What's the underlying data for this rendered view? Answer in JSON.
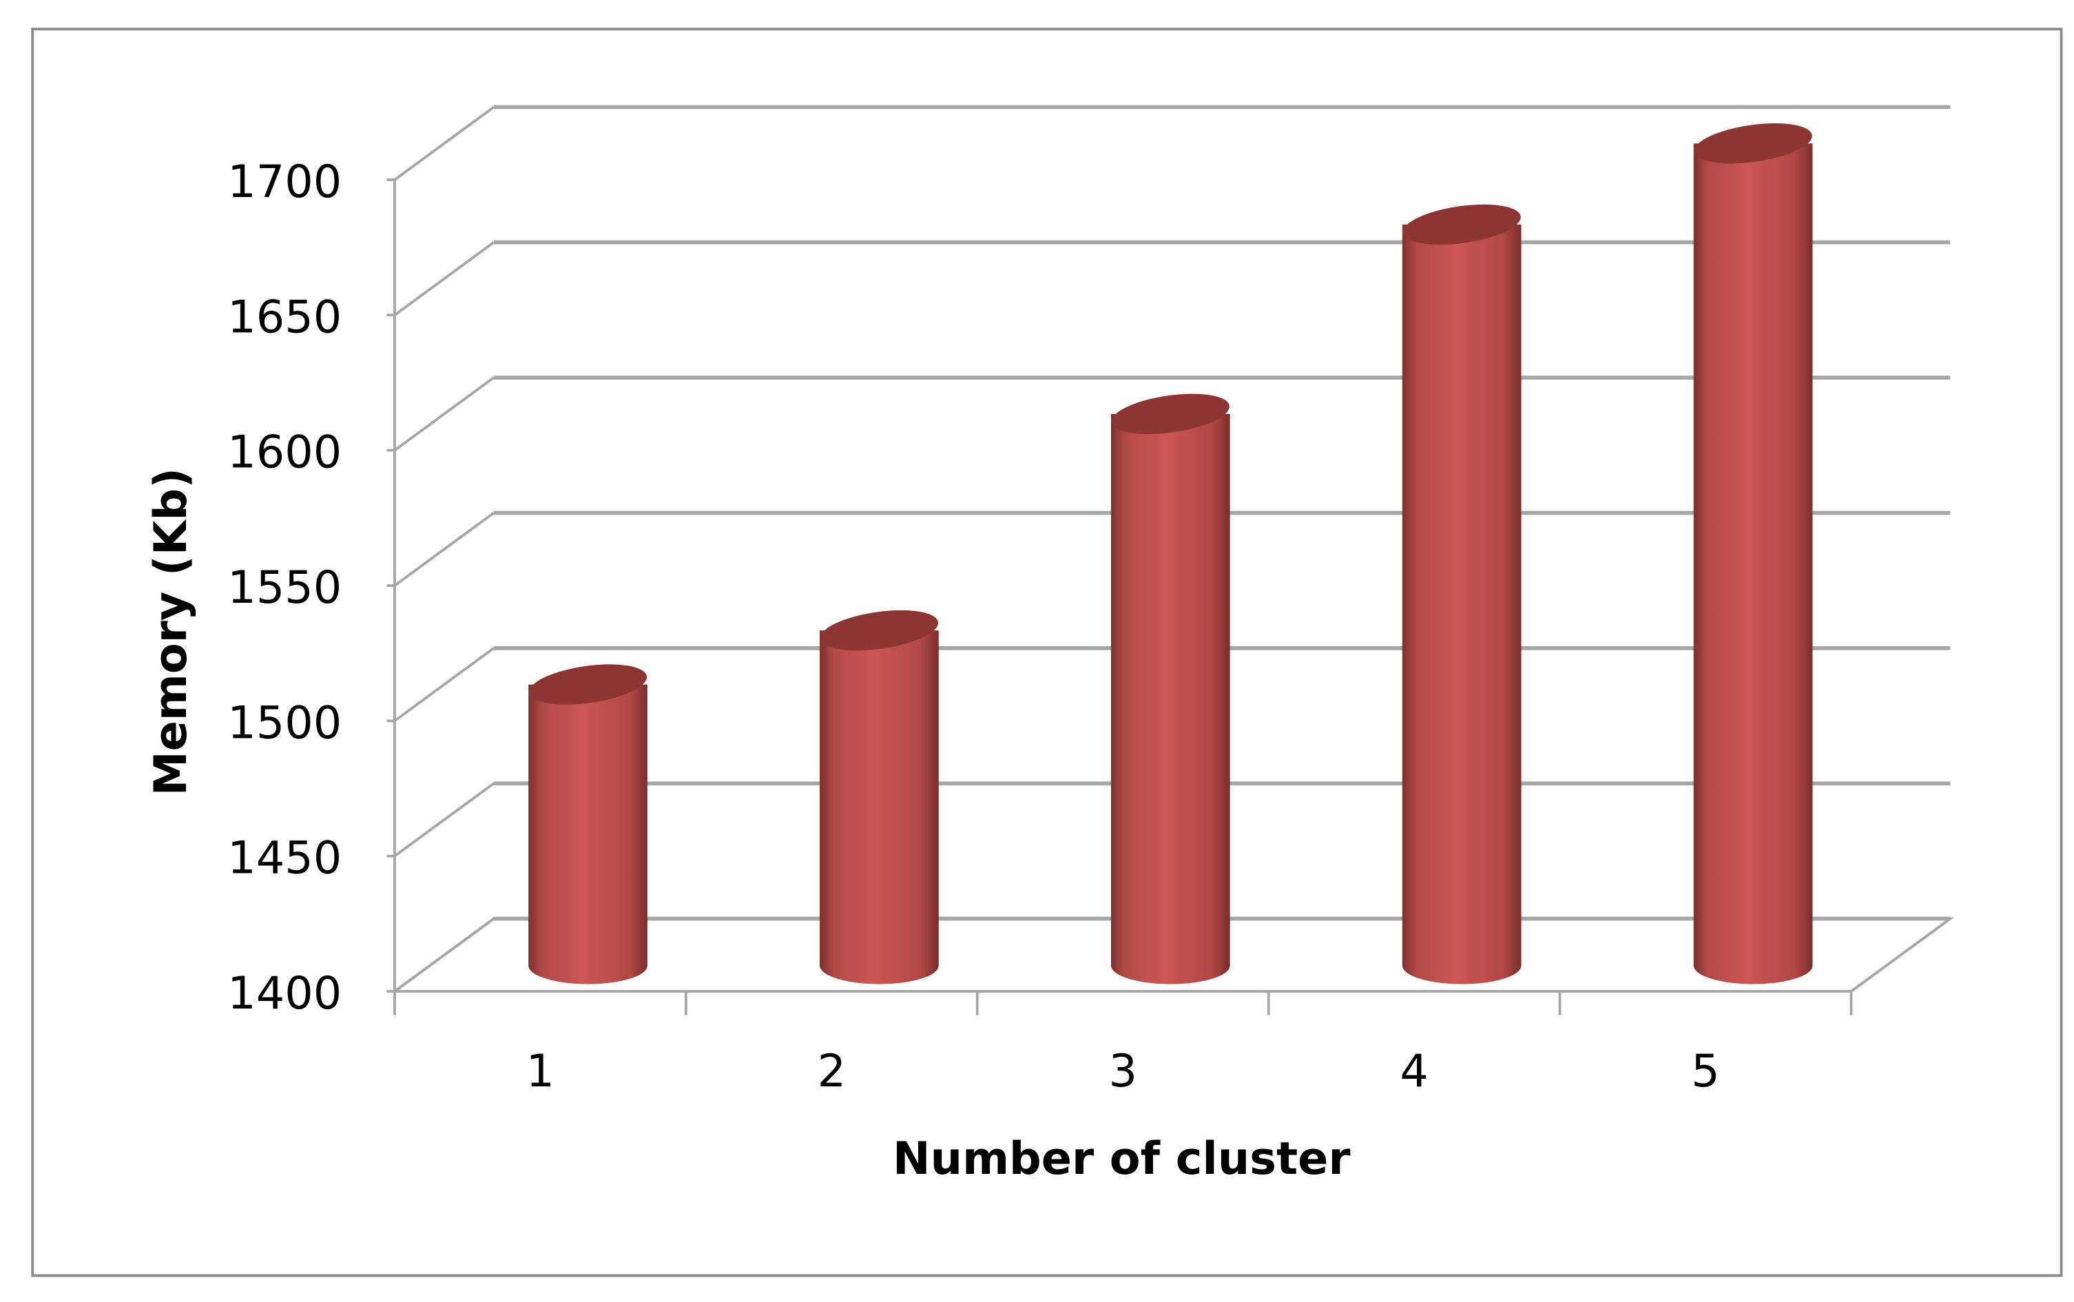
{
  "chart_data": {
    "type": "bar",
    "style": "3d-cylinder",
    "title": "",
    "xlabel": "Number of cluster",
    "ylabel": "Memory (Kb)",
    "categories": [
      "1",
      "2",
      "3",
      "4",
      "5"
    ],
    "values": [
      1500,
      1520,
      1600,
      1670,
      1700
    ],
    "ylim": [
      1400,
      1700
    ],
    "yticks": [
      "1400",
      "1450",
      "1500",
      "1550",
      "1600",
      "1650",
      "1700"
    ],
    "grid": true,
    "legend": "none",
    "colors": {
      "bar": "#c0504d",
      "bar_dark": "#8c3533",
      "grid": "#a6a6a6",
      "border": "#808080"
    }
  }
}
